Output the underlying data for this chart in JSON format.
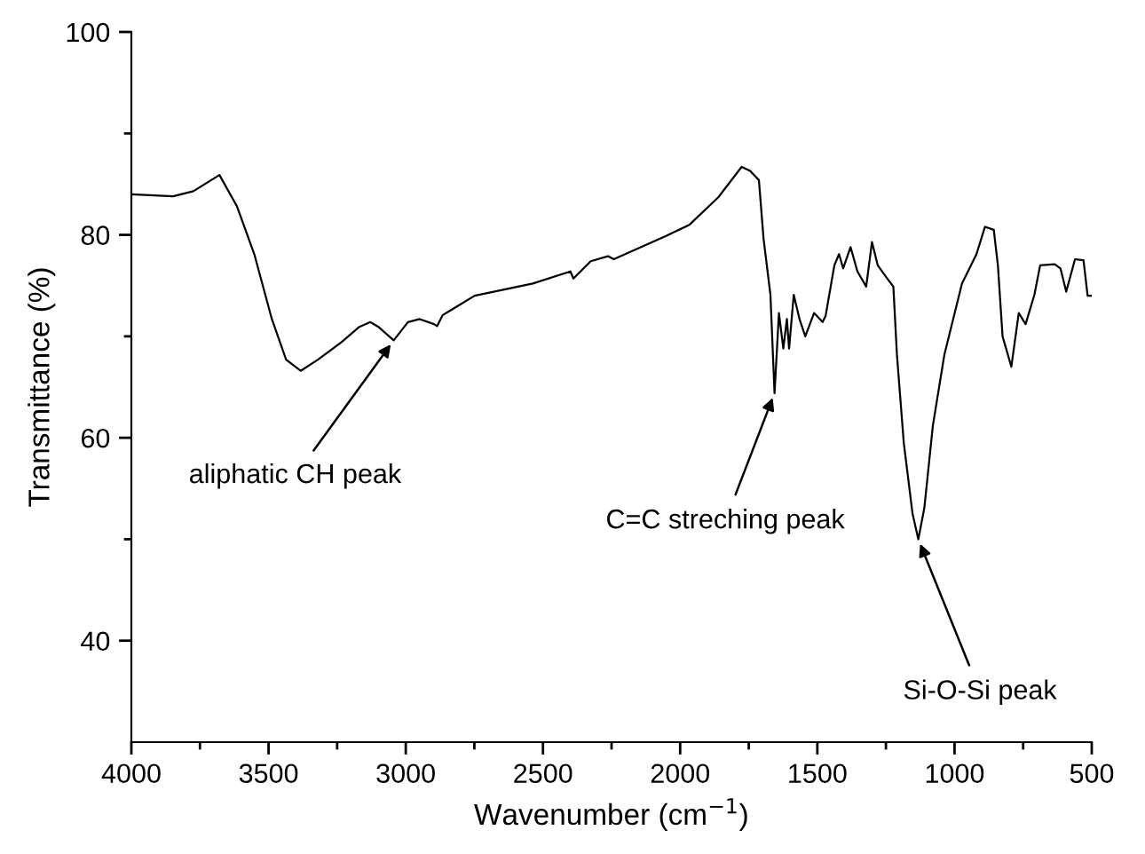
{
  "chart_data": {
    "type": "line",
    "xlabel": "Wavenumber (cm$^{−1}$)",
    "ylabel": "Transmittance (%)",
    "xlim": [
      4000,
      500
    ],
    "ylim": [
      30,
      100
    ],
    "xticks": [
      4000,
      {
        "value": 3750,
        "label": null
      },
      3500,
      {
        "value": 3250,
        "label": null
      },
      3000,
      {
        "value": 2750,
        "label": null
      },
      2500,
      {
        "value": 2250,
        "label": null
      },
      2000,
      {
        "value": 1750,
        "label": null
      },
      1500,
      {
        "value": 1250,
        "label": null
      },
      1000,
      {
        "value": 750,
        "label": null
      },
      500
    ],
    "yticks": [
      40,
      {
        "value": 50,
        "label": null
      },
      60,
      {
        "value": 70,
        "label": null
      },
      80,
      {
        "value": 90,
        "label": null
      },
      100
    ],
    "grid": false,
    "legend": false,
    "marker": "none",
    "line_style": "solid",
    "series": [
      {
        "color": "#000000",
        "x": [
          4000,
          3848,
          3774,
          3679,
          3615,
          3552,
          3488,
          3436,
          3383,
          3320,
          3235,
          3171,
          3129,
          3098,
          3044,
          2992,
          2949,
          2897,
          2886,
          2865,
          2749,
          2537,
          2400,
          2389,
          2326,
          2263,
          2242,
          2051,
          1966,
          1861,
          1776,
          1745,
          1713,
          1696,
          1671,
          1656,
          1640,
          1624,
          1611,
          1603,
          1586,
          1565,
          1544,
          1512,
          1481,
          1470,
          1438,
          1421,
          1406,
          1379,
          1354,
          1322,
          1301,
          1280,
          1248,
          1223,
          1210,
          1185,
          1153,
          1132,
          1110,
          1079,
          1037,
          973,
          920,
          889,
          857,
          842,
          825,
          793,
          766,
          741,
          709,
          688,
          635,
          614,
          593,
          561,
          530,
          515,
          500
        ],
        "values": [
          84.0,
          83.8,
          84.3,
          85.9,
          82.8,
          78.1,
          71.7,
          67.7,
          66.6,
          67.7,
          69.4,
          70.9,
          71.4,
          70.9,
          69.6,
          71.4,
          71.7,
          71.2,
          71.0,
          72.1,
          74.0,
          75.2,
          76.4,
          75.7,
          77.4,
          77.9,
          77.6,
          79.9,
          81.0,
          83.7,
          86.7,
          86.3,
          85.4,
          79.6,
          74.1,
          64.4,
          72.3,
          68.8,
          71.7,
          68.8,
          74.1,
          71.7,
          70.0,
          72.3,
          71.4,
          72.0,
          77.0,
          78.1,
          76.7,
          78.8,
          76.4,
          74.9,
          79.3,
          77.0,
          75.8,
          74.9,
          68.2,
          59.5,
          52.5,
          50.0,
          53.1,
          61.2,
          68.2,
          75.2,
          78.1,
          80.8,
          80.5,
          77.0,
          70.0,
          67.0,
          72.3,
          71.2,
          74.1,
          77.0,
          77.1,
          76.7,
          74.4,
          77.6,
          77.5,
          74.0,
          74.0
        ]
      }
    ],
    "annotations": [
      {
        "text": "aliphatic CH peak",
        "x": 3044,
        "y": 69.6
      },
      {
        "text": "C=C streching peak",
        "x": 1656,
        "y": 64.4
      },
      {
        "text": "Si-O-Si peak",
        "x": 1132,
        "y": 50.0
      }
    ]
  }
}
